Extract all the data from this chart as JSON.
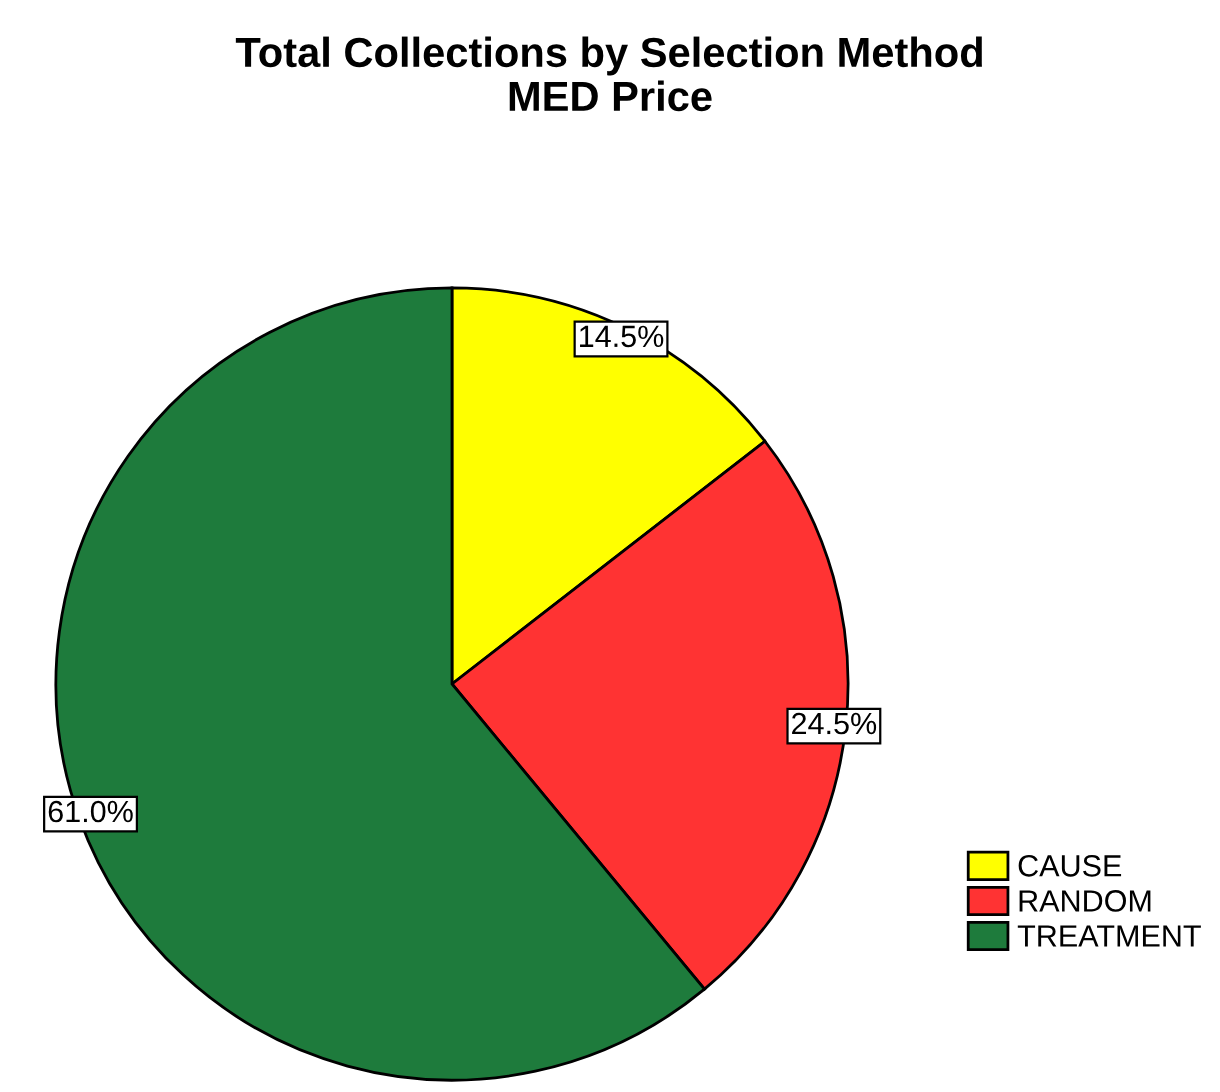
{
  "chart_data": {
    "type": "pie",
    "title": "Total Collections by Selection Method",
    "subtitle": "MED Price",
    "categories": [
      "CAUSE",
      "RANDOM",
      "TREATMENT"
    ],
    "values": [
      14.5,
      24.5,
      61.0
    ],
    "colors": [
      "#ffff00",
      "#ff3333",
      "#1e7b3c"
    ],
    "value_labels": [
      "14.5%",
      "24.5%",
      "61.0%"
    ],
    "legend": "bottom right"
  }
}
